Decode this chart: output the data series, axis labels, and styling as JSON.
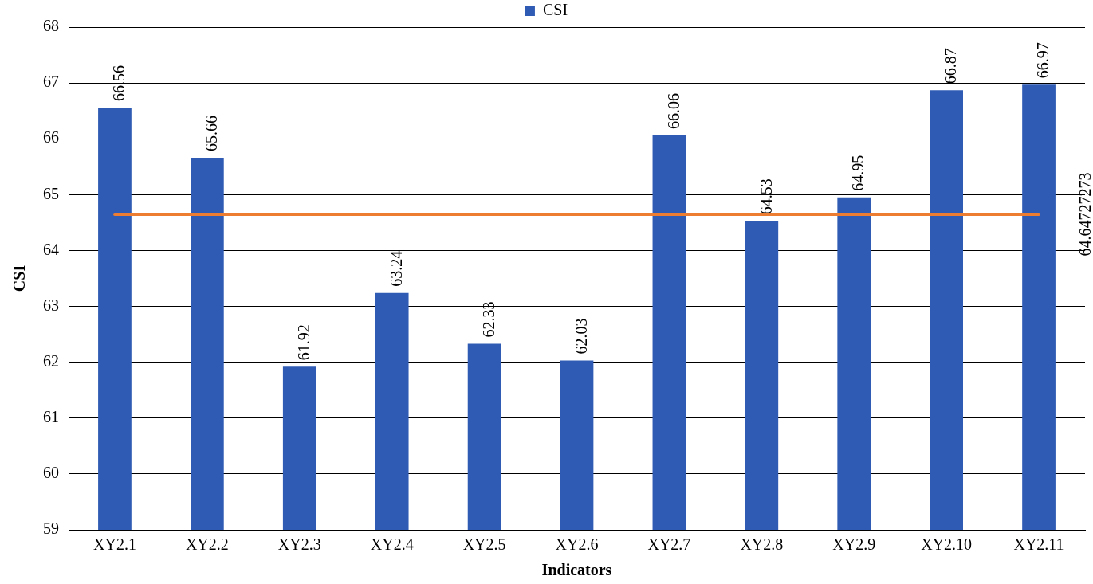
{
  "chart_data": {
    "type": "bar",
    "xlabel": "Indicators",
    "ylabel": "CSI",
    "categories": [
      "XY2.1",
      "XY2.2",
      "XY2.3",
      "XY2.4",
      "XY2.5",
      "XY2.6",
      "XY2.7",
      "XY2.8",
      "XY2.9",
      "XY2.10",
      "XY2.11"
    ],
    "series": [
      {
        "name": "CSI",
        "color": "#2f5bb4",
        "values": [
          66.56,
          65.66,
          61.92,
          63.24,
          62.33,
          62.03,
          66.06,
          64.53,
          64.95,
          66.87,
          66.97
        ]
      }
    ],
    "ylim": [
      59,
      68
    ],
    "yticks": [
      59,
      60,
      61,
      62,
      63,
      64,
      65,
      66,
      67,
      68
    ],
    "ref_lines": [
      {
        "axis": "y",
        "value": 64.64727273,
        "label": "64.64727273",
        "color": "#ed7d31"
      }
    ],
    "data_labels": true,
    "grid": "y",
    "legend": "top"
  }
}
